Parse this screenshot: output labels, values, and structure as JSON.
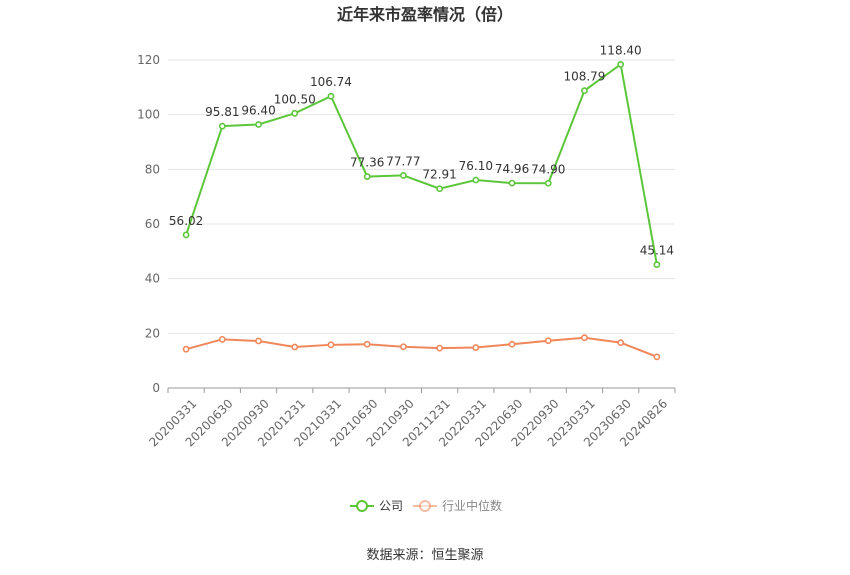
{
  "chart_data": {
    "type": "line",
    "title": "近年来市盈率情况（倍）",
    "categories": [
      "20200331",
      "20200630",
      "20200930",
      "20201231",
      "20210331",
      "20210630",
      "20210930",
      "20211231",
      "20220331",
      "20220630",
      "20220930",
      "20230331",
      "20230630",
      "20240826"
    ],
    "series": [
      {
        "name": "公司",
        "color": "#5cc63a",
        "values": [
          56.02,
          95.81,
          96.4,
          100.5,
          106.74,
          77.36,
          77.77,
          72.91,
          76.1,
          74.96,
          74.9,
          108.79,
          118.4,
          45.14
        ],
        "labels": [
          "56.02",
          "95.81",
          "96.40",
          "100.50",
          "106.74",
          "77.36",
          "77.77",
          "72.91",
          "76.10",
          "74.96",
          "74.90",
          "108.79",
          "118.40",
          "45.14"
        ]
      },
      {
        "name": "行业中位数",
        "color": "#f0875a",
        "values": [
          14.2,
          17.8,
          17.2,
          15.0,
          15.8,
          16.0,
          15.1,
          14.6,
          14.8,
          16.0,
          17.3,
          18.4,
          16.6,
          11.4
        ]
      }
    ],
    "ylim": [
      0,
      120
    ],
    "yticks": [
      "0",
      "20",
      "40",
      "60",
      "80",
      "100",
      "120"
    ],
    "legend_position": "bottom",
    "grid": true
  },
  "source": "数据来源：恒生聚源"
}
